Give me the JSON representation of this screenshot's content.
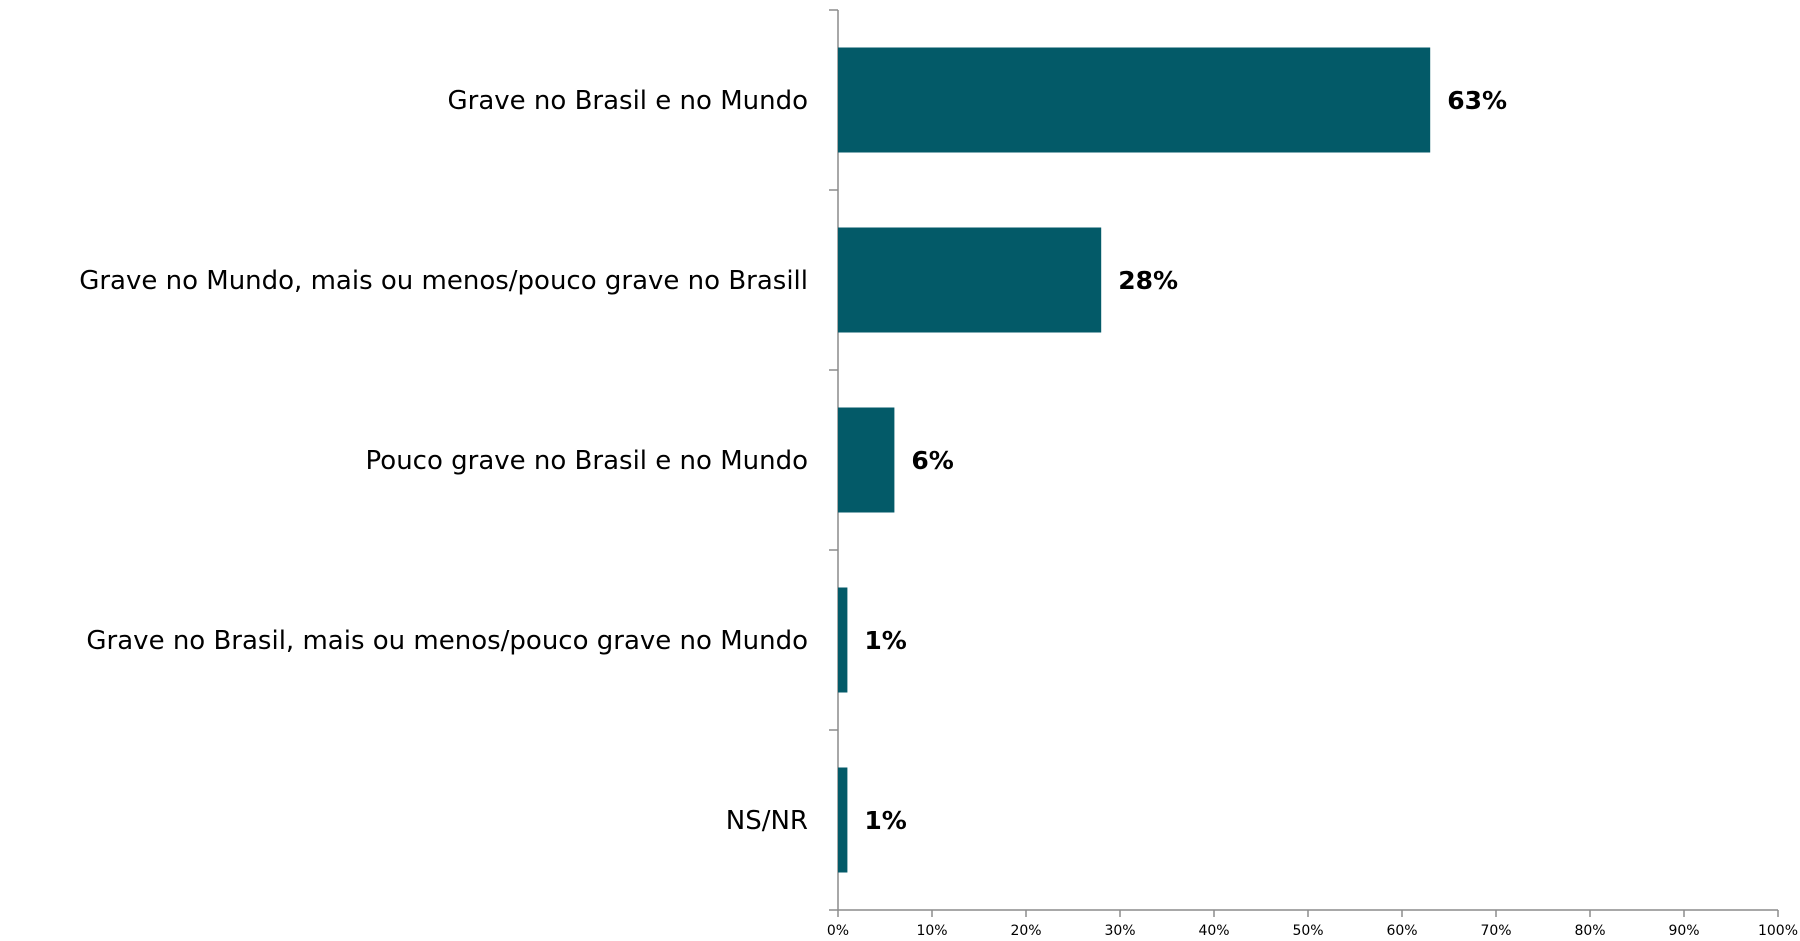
{
  "chart_data": {
    "type": "bar",
    "orientation": "horizontal",
    "categories": [
      "Grave no Brasil e no Mundo",
      "Grave no Mundo, mais ou menos/pouco grave no Brasill",
      "Pouco grave no Brasil e no Mundo",
      "Grave no Brasil, mais ou menos/pouco grave no Mundo",
      "NS/NR"
    ],
    "values": [
      63,
      28,
      6,
      1,
      1
    ],
    "value_labels": [
      "63%",
      "28%",
      "6%",
      "1%",
      "1%"
    ],
    "xlim": [
      0,
      100
    ],
    "x_ticks": [
      "0%",
      "10%",
      "20%",
      "30%",
      "40%",
      "50%",
      "60%",
      "70%",
      "80%",
      "90%",
      "100%"
    ],
    "title": "",
    "xlabel": "",
    "ylabel": "",
    "grid": false,
    "legend": "none",
    "bar_color": "#035a68"
  }
}
